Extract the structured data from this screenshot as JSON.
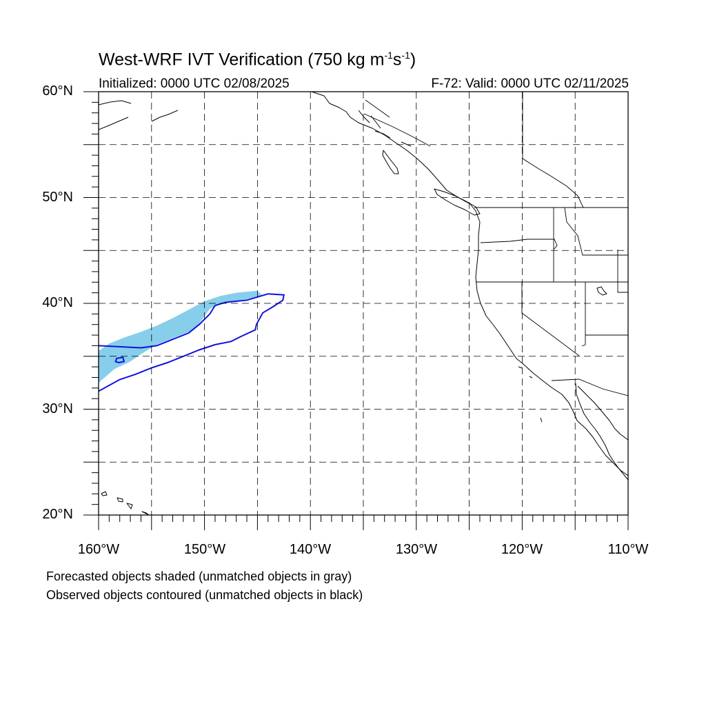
{
  "title": {
    "prefix": "West-WRF IVT Verification (750 kg m",
    "exp1": "-1",
    "mid": "s",
    "exp2": "-1",
    "suffix": ")"
  },
  "initialized": "Initialized: 0000 UTC 02/08/2025",
  "valid": "F-72: Valid: 0000 UTC 02/11/2025",
  "lat_labels": [
    "60°N",
    "50°N",
    "40°N",
    "30°N",
    "20°N"
  ],
  "lon_labels": [
    "160°W",
    "150°W",
    "140°W",
    "130°W",
    "120°W",
    "110°W"
  ],
  "notes": {
    "forecast": "Forecasted objects shaded (unmatched objects in gray)",
    "observed": "Observed objects contoured (unmatched objects in black)"
  },
  "map": {
    "lon_range": [
      -160,
      -110
    ],
    "lat_range": [
      20,
      60
    ],
    "grid_step_deg": 5,
    "colors": {
      "forecast_fill": "#87ceeb",
      "observed_contour": "#1010e0",
      "coast": "#000000",
      "grid": "#000000"
    },
    "forecast_object": [
      [
        -160,
        35.5
      ],
      [
        -159,
        36.2
      ],
      [
        -157.5,
        36.8
      ],
      [
        -156,
        37.3
      ],
      [
        -154.5,
        37.9
      ],
      [
        -153,
        38.6
      ],
      [
        -151.5,
        39.4
      ],
      [
        -150,
        40.2
      ],
      [
        -148.5,
        40.7
      ],
      [
        -147,
        41.0
      ],
      [
        -145,
        41.2
      ],
      [
        -144.5,
        40.7
      ],
      [
        -146,
        40.4
      ],
      [
        -148,
        40.1
      ],
      [
        -149.5,
        39.5
      ],
      [
        -150.2,
        38.5
      ],
      [
        -151,
        37.5
      ],
      [
        -152.5,
        36.9
      ],
      [
        -154.5,
        36.1
      ],
      [
        -156,
        35.2
      ],
      [
        -157,
        34.5
      ],
      [
        -158.5,
        33.8
      ],
      [
        -160,
        32.5
      ]
    ],
    "observed_object": [
      [
        -160,
        36.0
      ],
      [
        -158,
        35.9
      ],
      [
        -156,
        35.8
      ],
      [
        -154.5,
        36.0
      ],
      [
        -153,
        36.6
      ],
      [
        -151.5,
        37.2
      ],
      [
        -150.5,
        38.0
      ],
      [
        -149.5,
        39.0
      ],
      [
        -149,
        39.8
      ],
      [
        -148,
        40.1
      ],
      [
        -146,
        40.3
      ],
      [
        -144,
        40.9
      ],
      [
        -142.5,
        40.8
      ],
      [
        -142.6,
        40.3
      ],
      [
        -143.5,
        39.7
      ],
      [
        -144.5,
        39.1
      ],
      [
        -145.1,
        38.0
      ],
      [
        -145.2,
        37.5
      ],
      [
        -146.5,
        36.9
      ],
      [
        -147.5,
        36.4
      ],
      [
        -149,
        36.1
      ],
      [
        -150.5,
        35.6
      ],
      [
        -152,
        35.0
      ],
      [
        -153.5,
        34.4
      ],
      [
        -155,
        33.9
      ],
      [
        -156.5,
        33.3
      ],
      [
        -158,
        32.8
      ],
      [
        -160,
        31.7
      ]
    ],
    "observed_small_object": [
      [
        -158.3,
        34.8
      ],
      [
        -157.7,
        34.9
      ],
      [
        -157.6,
        34.5
      ],
      [
        -158.1,
        34.4
      ],
      [
        -158.4,
        34.5
      ]
    ]
  }
}
